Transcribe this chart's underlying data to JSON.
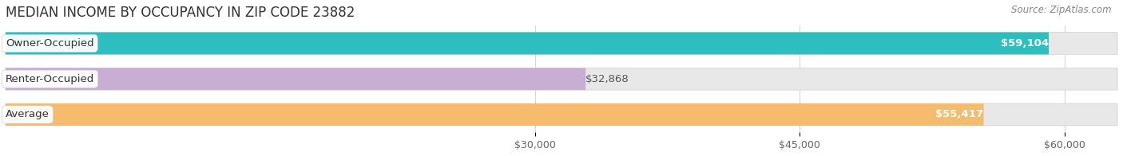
{
  "title": "MEDIAN INCOME BY OCCUPANCY IN ZIP CODE 23882",
  "source": "Source: ZipAtlas.com",
  "categories": [
    "Owner-Occupied",
    "Renter-Occupied",
    "Average"
  ],
  "values": [
    59104,
    32868,
    55417
  ],
  "bar_colors": [
    "#2dbfbf",
    "#c8aed4",
    "#f6bc6e"
  ],
  "value_labels": [
    "$59,104",
    "$32,868",
    "$55,417"
  ],
  "xlim_max": 63000,
  "xticks": [
    30000,
    45000,
    60000
  ],
  "xtick_labels": [
    "$30,000",
    "$45,000",
    "$60,000"
  ],
  "background_color": "#ffffff",
  "bar_bg_color": "#e8e8e8",
  "title_fontsize": 12,
  "source_fontsize": 8.5,
  "label_fontsize": 9.5,
  "value_fontsize": 9.5,
  "tick_fontsize": 9,
  "bar_height": 0.62,
  "bar_gap": 0.18
}
